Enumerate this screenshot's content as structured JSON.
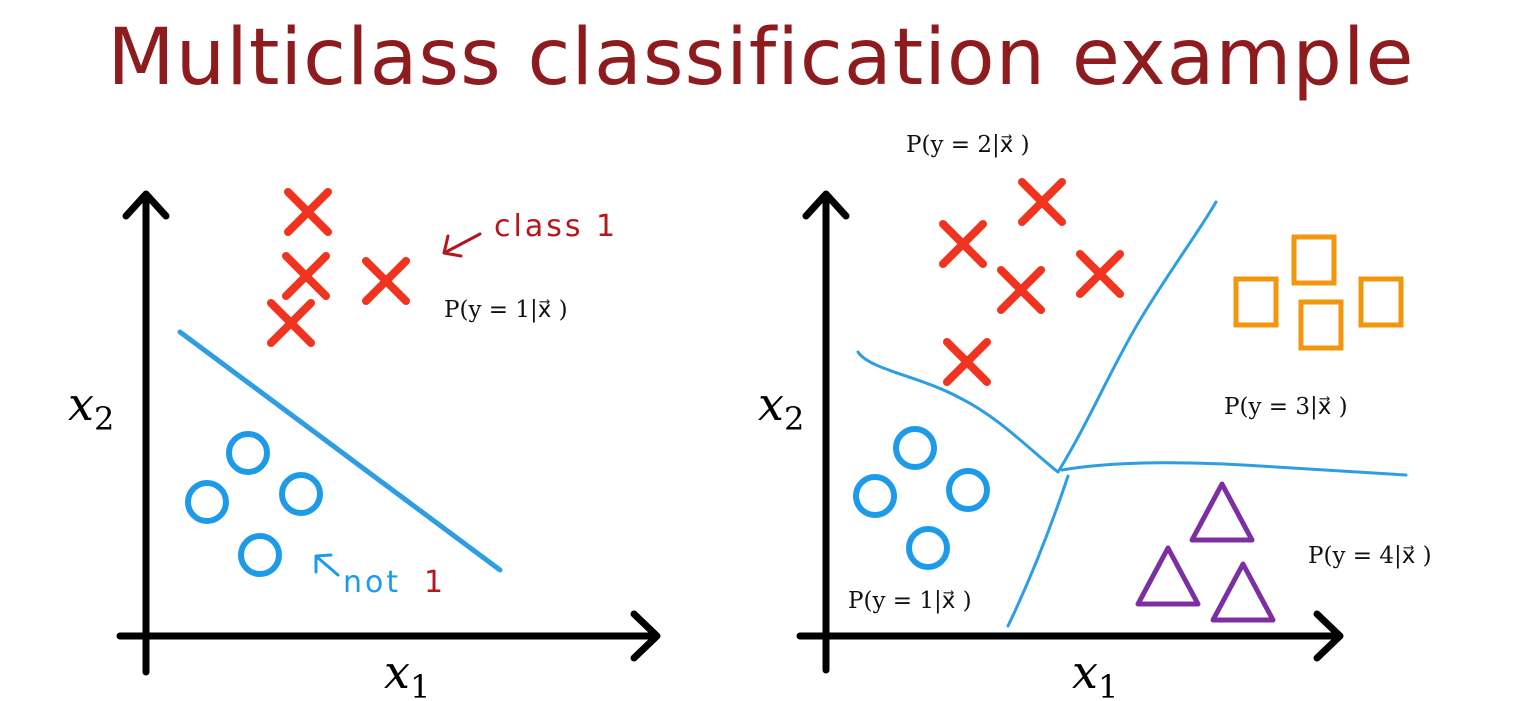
{
  "title": "Multiclass classification example",
  "colors": {
    "title": "#8e1c1e",
    "cross": "#f0341f",
    "circle": "#1e9be8",
    "square": "#f2960c",
    "triangle": "#7b2fa3",
    "boundary": "#2e9ee4",
    "annotation_red": "#b5171c",
    "annotation_blue": "#1e9be8"
  },
  "left_plot": {
    "x_axis_label": "x",
    "x_axis_sub": "1",
    "y_axis_label": "x",
    "y_axis_sub": "2",
    "class1_annotation": "class 1",
    "not1_annotation_text": "not",
    "not1_annotation_num": "1",
    "prob_label": "P(y = 1|x⃗ )"
  },
  "right_plot": {
    "x_axis_label": "x",
    "x_axis_sub": "1",
    "y_axis_label": "x",
    "y_axis_sub": "2",
    "prob_labels": {
      "class1": "P(y = 1|x⃗ )",
      "class2": "P(y = 2|x⃗ )",
      "class3": "P(y = 3|x⃗ )",
      "class4": "P(y = 4|x⃗ )"
    }
  }
}
